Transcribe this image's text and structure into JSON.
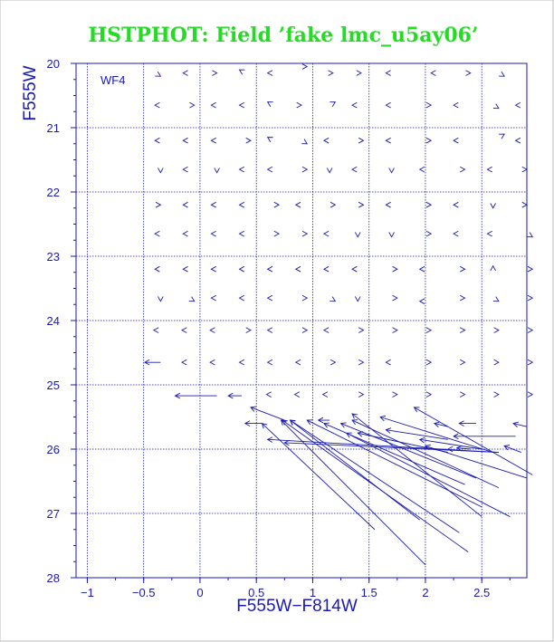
{
  "chart_data": {
    "type": "vector-field",
    "title": "HSTPHOT: Field ’fake lmc_u5ay06’",
    "panel_label": "WF4",
    "xlabel": "F555W−F814W",
    "ylabel": "F555W",
    "xlim": [
      -1.1,
      2.9
    ],
    "ylim": [
      28,
      20
    ],
    "y_inverted": true,
    "grid": true,
    "x_ticks": [
      -1,
      -0.5,
      0,
      0.5,
      1,
      1.5,
      2,
      2.5
    ],
    "x_tick_labels": [
      "−1",
      "−0.5",
      "0",
      "0.5",
      "1",
      "1.5",
      "2",
      "2.5"
    ],
    "y_ticks": [
      20,
      21,
      22,
      23,
      24,
      25,
      26,
      27,
      28
    ],
    "y_tick_labels": [
      "20",
      "21",
      "22",
      "23",
      "24",
      "25",
      "26",
      "27",
      "28"
    ],
    "line_color": "#1a1ab0",
    "title_color": "#22dd22",
    "arrows_note": "Each mark starts at the input (color, magnitude) and points to the measured value; head is the chevron.",
    "arrows": [
      {
        "x": -0.4,
        "y": 20.15,
        "dx": 0.05,
        "dy": 0.05
      },
      {
        "x": -0.1,
        "y": 20.15,
        "dx": -0.05,
        "dy": 0.0
      },
      {
        "x": 0.1,
        "y": 20.15,
        "dx": 0.05,
        "dy": 0.0
      },
      {
        "x": 0.4,
        "y": 20.15,
        "dx": -0.05,
        "dy": -0.05
      },
      {
        "x": 0.65,
        "y": 20.15,
        "dx": -0.05,
        "dy": 0.0
      },
      {
        "x": 0.9,
        "y": 20.05,
        "dx": 0.05,
        "dy": 0.0
      },
      {
        "x": 1.15,
        "y": 20.15,
        "dx": 0.03,
        "dy": 0.0
      },
      {
        "x": 1.4,
        "y": 20.15,
        "dx": 0.03,
        "dy": 0.0
      },
      {
        "x": 1.7,
        "y": 20.15,
        "dx": -0.05,
        "dy": 0.0
      },
      {
        "x": 2.1,
        "y": 20.15,
        "dx": -0.05,
        "dy": 0.0
      },
      {
        "x": 2.35,
        "y": 20.15,
        "dx": 0.05,
        "dy": 0.0
      },
      {
        "x": 2.65,
        "y": 20.15,
        "dx": 0.05,
        "dy": 0.05
      },
      {
        "x": -0.35,
        "y": 20.65,
        "dx": -0.05,
        "dy": 0.0
      },
      {
        "x": -0.1,
        "y": 20.65,
        "dx": 0.05,
        "dy": 0.0
      },
      {
        "x": 0.15,
        "y": 20.65,
        "dx": -0.05,
        "dy": 0.0
      },
      {
        "x": 0.4,
        "y": 20.65,
        "dx": -0.05,
        "dy": 0.0
      },
      {
        "x": 0.65,
        "y": 20.65,
        "dx": -0.05,
        "dy": -0.05
      },
      {
        "x": 0.85,
        "y": 20.65,
        "dx": 0.05,
        "dy": 0.0
      },
      {
        "x": 1.15,
        "y": 20.65,
        "dx": 0.05,
        "dy": -0.05
      },
      {
        "x": 1.4,
        "y": 20.65,
        "dx": -0.05,
        "dy": 0.0
      },
      {
        "x": 1.7,
        "y": 20.65,
        "dx": -0.05,
        "dy": 0.0
      },
      {
        "x": 2.0,
        "y": 20.65,
        "dx": 0.05,
        "dy": 0.0
      },
      {
        "x": 2.3,
        "y": 20.65,
        "dx": -0.05,
        "dy": 0.0
      },
      {
        "x": 2.6,
        "y": 20.65,
        "dx": 0.05,
        "dy": 0.05
      },
      {
        "x": 2.85,
        "y": 20.65,
        "dx": -0.05,
        "dy": 0.0
      },
      {
        "x": -0.35,
        "y": 21.2,
        "dx": -0.05,
        "dy": 0.0
      },
      {
        "x": -0.1,
        "y": 21.2,
        "dx": -0.05,
        "dy": 0.0
      },
      {
        "x": 0.15,
        "y": 21.2,
        "dx": -0.05,
        "dy": 0.0
      },
      {
        "x": 0.4,
        "y": 21.2,
        "dx": 0.05,
        "dy": 0.0
      },
      {
        "x": 0.65,
        "y": 21.2,
        "dx": -0.05,
        "dy": -0.05
      },
      {
        "x": 0.9,
        "y": 21.2,
        "dx": 0.05,
        "dy": 0.05
      },
      {
        "x": 1.15,
        "y": 21.2,
        "dx": -0.05,
        "dy": 0.0
      },
      {
        "x": 1.4,
        "y": 21.2,
        "dx": 0.05,
        "dy": 0.0
      },
      {
        "x": 1.7,
        "y": 21.2,
        "dx": -0.05,
        "dy": 0.0
      },
      {
        "x": 2.0,
        "y": 21.2,
        "dx": 0.05,
        "dy": 0.0
      },
      {
        "x": 2.3,
        "y": 21.2,
        "dx": -0.05,
        "dy": 0.0
      },
      {
        "x": 2.65,
        "y": 21.15,
        "dx": 0.05,
        "dy": -0.05
      },
      {
        "x": 2.85,
        "y": 21.2,
        "dx": -0.05,
        "dy": 0.0
      },
      {
        "x": -0.35,
        "y": 21.65,
        "dx": 0.0,
        "dy": 0.05
      },
      {
        "x": -0.1,
        "y": 21.65,
        "dx": -0.05,
        "dy": 0.0
      },
      {
        "x": 0.15,
        "y": 21.65,
        "dx": 0.0,
        "dy": 0.05
      },
      {
        "x": 0.4,
        "y": 21.65,
        "dx": -0.05,
        "dy": 0.0
      },
      {
        "x": 0.65,
        "y": 21.65,
        "dx": -0.05,
        "dy": 0.0
      },
      {
        "x": 0.9,
        "y": 21.65,
        "dx": 0.05,
        "dy": 0.0
      },
      {
        "x": 1.15,
        "y": 21.65,
        "dx": 0.0,
        "dy": 0.05
      },
      {
        "x": 1.4,
        "y": 21.65,
        "dx": -0.05,
        "dy": 0.0
      },
      {
        "x": 1.7,
        "y": 21.65,
        "dx": 0.0,
        "dy": 0.05
      },
      {
        "x": 2.0,
        "y": 21.65,
        "dx": -0.05,
        "dy": 0.0
      },
      {
        "x": 2.3,
        "y": 21.65,
        "dx": 0.05,
        "dy": 0.0
      },
      {
        "x": 2.6,
        "y": 21.65,
        "dx": -0.05,
        "dy": 0.0
      },
      {
        "x": 2.85,
        "y": 21.65,
        "dx": 0.05,
        "dy": 0.0
      },
      {
        "x": -0.4,
        "y": 22.2,
        "dx": 0.05,
        "dy": 0.0
      },
      {
        "x": -0.1,
        "y": 22.2,
        "dx": -0.05,
        "dy": 0.0
      },
      {
        "x": 0.15,
        "y": 22.2,
        "dx": -0.05,
        "dy": 0.0
      },
      {
        "x": 0.4,
        "y": 22.2,
        "dx": -0.05,
        "dy": 0.0
      },
      {
        "x": 0.65,
        "y": 22.2,
        "dx": 0.05,
        "dy": 0.0
      },
      {
        "x": 0.9,
        "y": 22.2,
        "dx": -0.05,
        "dy": 0.0
      },
      {
        "x": 1.15,
        "y": 22.2,
        "dx": 0.05,
        "dy": 0.0
      },
      {
        "x": 1.4,
        "y": 22.2,
        "dx": 0.05,
        "dy": 0.0
      },
      {
        "x": 1.7,
        "y": 22.2,
        "dx": -0.05,
        "dy": 0.0
      },
      {
        "x": 2.0,
        "y": 22.2,
        "dx": 0.05,
        "dy": 0.0
      },
      {
        "x": 2.3,
        "y": 22.2,
        "dx": -0.05,
        "dy": 0.0
      },
      {
        "x": 2.6,
        "y": 22.2,
        "dx": 0.0,
        "dy": 0.05
      },
      {
        "x": 2.85,
        "y": 22.2,
        "dx": 0.05,
        "dy": 0.0
      },
      {
        "x": -0.35,
        "y": 22.65,
        "dx": -0.05,
        "dy": 0.0
      },
      {
        "x": -0.1,
        "y": 22.65,
        "dx": -0.05,
        "dy": 0.0
      },
      {
        "x": 0.15,
        "y": 22.65,
        "dx": -0.05,
        "dy": 0.0
      },
      {
        "x": 0.4,
        "y": 22.65,
        "dx": -0.05,
        "dy": 0.0
      },
      {
        "x": 0.65,
        "y": 22.65,
        "dx": 0.05,
        "dy": 0.0
      },
      {
        "x": 0.9,
        "y": 22.65,
        "dx": 0.05,
        "dy": 0.0
      },
      {
        "x": 1.15,
        "y": 22.65,
        "dx": -0.05,
        "dy": 0.0
      },
      {
        "x": 1.4,
        "y": 22.65,
        "dx": 0.0,
        "dy": 0.05
      },
      {
        "x": 1.7,
        "y": 22.65,
        "dx": 0.0,
        "dy": 0.05
      },
      {
        "x": 2.0,
        "y": 22.65,
        "dx": 0.05,
        "dy": 0.0
      },
      {
        "x": 2.3,
        "y": 22.65,
        "dx": -0.05,
        "dy": 0.0
      },
      {
        "x": 2.6,
        "y": 22.65,
        "dx": -0.05,
        "dy": 0.0
      },
      {
        "x": 2.9,
        "y": 22.65,
        "dx": 0.05,
        "dy": 0.05
      },
      {
        "x": -0.35,
        "y": 23.2,
        "dx": -0.05,
        "dy": 0.0
      },
      {
        "x": -0.1,
        "y": 23.2,
        "dx": -0.05,
        "dy": 0.0
      },
      {
        "x": 0.15,
        "y": 23.2,
        "dx": -0.05,
        "dy": 0.0
      },
      {
        "x": 0.4,
        "y": 23.2,
        "dx": -0.05,
        "dy": 0.0
      },
      {
        "x": 0.65,
        "y": 23.2,
        "dx": -0.05,
        "dy": 0.0
      },
      {
        "x": 0.9,
        "y": 23.2,
        "dx": -0.05,
        "dy": 0.0
      },
      {
        "x": 1.15,
        "y": 23.2,
        "dx": -0.05,
        "dy": 0.0
      },
      {
        "x": 1.4,
        "y": 23.2,
        "dx": -0.05,
        "dy": 0.0
      },
      {
        "x": 1.7,
        "y": 23.2,
        "dx": 0.05,
        "dy": 0.0
      },
      {
        "x": 2.0,
        "y": 23.2,
        "dx": -0.05,
        "dy": 0.0
      },
      {
        "x": 2.3,
        "y": 23.2,
        "dx": 0.05,
        "dy": 0.0
      },
      {
        "x": 2.6,
        "y": 23.2,
        "dx": 0.0,
        "dy": -0.05
      },
      {
        "x": 2.9,
        "y": 23.2,
        "dx": 0.05,
        "dy": 0.0
      },
      {
        "x": -0.35,
        "y": 23.65,
        "dx": 0.0,
        "dy": 0.05
      },
      {
        "x": -0.1,
        "y": 23.65,
        "dx": 0.05,
        "dy": 0.05
      },
      {
        "x": 0.15,
        "y": 23.65,
        "dx": -0.05,
        "dy": 0.0
      },
      {
        "x": 0.4,
        "y": 23.65,
        "dx": -0.05,
        "dy": 0.0
      },
      {
        "x": 0.65,
        "y": 23.65,
        "dx": -0.05,
        "dy": 0.0
      },
      {
        "x": 0.9,
        "y": 23.65,
        "dx": 0.05,
        "dy": 0.0
      },
      {
        "x": 1.15,
        "y": 23.65,
        "dx": 0.05,
        "dy": 0.05
      },
      {
        "x": 1.4,
        "y": 23.65,
        "dx": 0.0,
        "dy": 0.05
      },
      {
        "x": 1.7,
        "y": 23.65,
        "dx": 0.05,
        "dy": 0.0
      },
      {
        "x": 2.0,
        "y": 23.7,
        "dx": -0.05,
        "dy": 0.0
      },
      {
        "x": 2.3,
        "y": 23.65,
        "dx": 0.05,
        "dy": 0.0
      },
      {
        "x": 2.6,
        "y": 23.65,
        "dx": 0.05,
        "dy": 0.05
      },
      {
        "x": 2.9,
        "y": 23.65,
        "dx": 0.05,
        "dy": 0.0
      },
      {
        "x": -0.35,
        "y": 24.15,
        "dx": -0.06,
        "dy": 0.0
      },
      {
        "x": -0.1,
        "y": 24.15,
        "dx": -0.06,
        "dy": 0.0
      },
      {
        "x": 0.15,
        "y": 24.15,
        "dx": -0.06,
        "dy": 0.0
      },
      {
        "x": 0.4,
        "y": 24.15,
        "dx": 0.05,
        "dy": 0.0
      },
      {
        "x": 0.65,
        "y": 24.15,
        "dx": -0.05,
        "dy": 0.0
      },
      {
        "x": 0.9,
        "y": 24.15,
        "dx": 0.05,
        "dy": 0.0
      },
      {
        "x": 1.15,
        "y": 24.15,
        "dx": -0.05,
        "dy": 0.0
      },
      {
        "x": 1.4,
        "y": 24.15,
        "dx": 0.05,
        "dy": 0.0
      },
      {
        "x": 1.7,
        "y": 24.15,
        "dx": 0.05,
        "dy": 0.0
      },
      {
        "x": 2.0,
        "y": 24.15,
        "dx": 0.05,
        "dy": 0.0
      },
      {
        "x": 2.3,
        "y": 24.15,
        "dx": 0.05,
        "dy": 0.0
      },
      {
        "x": 2.6,
        "y": 24.15,
        "dx": 0.05,
        "dy": 0.0
      },
      {
        "x": 2.9,
        "y": 24.15,
        "dx": 0.05,
        "dy": 0.0
      },
      {
        "x": -0.35,
        "y": 24.65,
        "dx": -0.14,
        "dy": 0.0
      },
      {
        "x": -0.1,
        "y": 24.65,
        "dx": -0.06,
        "dy": 0.0
      },
      {
        "x": 0.15,
        "y": 24.65,
        "dx": -0.06,
        "dy": 0.0
      },
      {
        "x": 0.4,
        "y": 24.65,
        "dx": -0.05,
        "dy": 0.0
      },
      {
        "x": 0.65,
        "y": 24.65,
        "dx": -0.05,
        "dy": 0.0
      },
      {
        "x": 0.9,
        "y": 24.65,
        "dx": -0.05,
        "dy": 0.0
      },
      {
        "x": 1.15,
        "y": 24.65,
        "dx": 0.05,
        "dy": 0.0
      },
      {
        "x": 1.4,
        "y": 24.65,
        "dx": 0.05,
        "dy": 0.0
      },
      {
        "x": 1.7,
        "y": 24.65,
        "dx": -0.05,
        "dy": 0.0
      },
      {
        "x": 2.0,
        "y": 24.65,
        "dx": 0.05,
        "dy": 0.0
      },
      {
        "x": 2.3,
        "y": 24.65,
        "dx": 0.05,
        "dy": 0.0
      },
      {
        "x": 2.6,
        "y": 24.65,
        "dx": 0.05,
        "dy": 0.0
      },
      {
        "x": 2.9,
        "y": 24.65,
        "dx": 0.05,
        "dy": 0.0
      },
      {
        "x": 0.15,
        "y": 25.17,
        "dx": -0.37,
        "dy": 0.0
      },
      {
        "x": 0.37,
        "y": 25.17,
        "dx": -0.12,
        "dy": 0.0
      },
      {
        "x": 0.65,
        "y": 25.15,
        "dx": -0.06,
        "dy": 0.0
      },
      {
        "x": 0.9,
        "y": 25.15,
        "dx": -0.06,
        "dy": 0.0
      },
      {
        "x": 1.15,
        "y": 25.15,
        "dx": -0.06,
        "dy": 0.0
      },
      {
        "x": 1.4,
        "y": 25.15,
        "dx": 0.05,
        "dy": 0.0
      },
      {
        "x": 1.7,
        "y": 25.15,
        "dx": 0.05,
        "dy": 0.0
      },
      {
        "x": 2.0,
        "y": 25.15,
        "dx": 0.05,
        "dy": 0.0
      },
      {
        "x": 2.3,
        "y": 25.15,
        "dx": 0.05,
        "dy": 0.0
      },
      {
        "x": 2.6,
        "y": 25.15,
        "dx": 0.05,
        "dy": 0.0
      },
      {
        "x": 2.9,
        "y": 25.15,
        "dx": 0.05,
        "dy": 0.0
      },
      {
        "x": 0.75,
        "y": 25.55,
        "dx": -0.3,
        "dy": -0.2
      },
      {
        "x": 1.15,
        "y": 25.55,
        "dx": -0.1,
        "dy": 0.0
      },
      {
        "x": 0.55,
        "y": 25.6,
        "dx": -0.15,
        "dy": 0.0
      },
      {
        "x": 2.9,
        "y": 25.65,
        "dx": -0.12,
        "dy": -0.05
      },
      {
        "x": 2.45,
        "y": 25.6,
        "dx": -0.15,
        "dy": 0.0
      },
      {
        "x": 2.2,
        "y": 25.65,
        "dx": -0.12,
        "dy": -0.05
      },
      {
        "x": 1.55,
        "y": 27.25,
        "dx": -1.0,
        "dy": -1.65
      },
      {
        "x": 2.0,
        "y": 27.8,
        "dx": -1.28,
        "dy": -2.25
      },
      {
        "x": 2.38,
        "y": 27.6,
        "dx": -1.65,
        "dy": -2.05
      },
      {
        "x": 2.3,
        "y": 27.3,
        "dx": -1.5,
        "dy": -1.75
      },
      {
        "x": 1.95,
        "y": 27.1,
        "dx": -1.15,
        "dy": -1.55
      },
      {
        "x": 2.5,
        "y": 26.9,
        "dx": -1.55,
        "dy": -1.35
      },
      {
        "x": 2.5,
        "y": 27.05,
        "dx": -1.15,
        "dy": -1.6
      },
      {
        "x": 2.75,
        "y": 27.05,
        "dx": -1.45,
        "dy": -1.3
      },
      {
        "x": 2.65,
        "y": 26.6,
        "dx": -1.3,
        "dy": -1.05
      },
      {
        "x": 2.45,
        "y": 26.45,
        "dx": -1.2,
        "dy": -0.85
      },
      {
        "x": 2.35,
        "y": 26.55,
        "dx": -1.25,
        "dy": -0.95
      },
      {
        "x": 2.2,
        "y": 26.05,
        "dx": -0.8,
        "dy": -0.3
      },
      {
        "x": 2.6,
        "y": 26.05,
        "dx": -1.0,
        "dy": -0.55
      },
      {
        "x": 2.5,
        "y": 26.0,
        "dx": -0.55,
        "dy": -0.15
      },
      {
        "x": 2.65,
        "y": 26.05,
        "dx": -1.9,
        "dy": -0.15
      },
      {
        "x": 2.65,
        "y": 26.05,
        "dx": -2.05,
        "dy": -0.2
      },
      {
        "x": 2.2,
        "y": 25.85,
        "dx": -0.55,
        "dy": -0.15
      },
      {
        "x": 2.9,
        "y": 26.45,
        "dx": -0.9,
        "dy": -0.5
      },
      {
        "x": 2.95,
        "y": 26.4,
        "dx": -1.05,
        "dy": -1.05
      },
      {
        "x": 2.8,
        "y": 25.8,
        "dx": -0.55,
        "dy": 0.0
      },
      {
        "x": 2.85,
        "y": 26.05,
        "dx": -0.15,
        "dy": -0.1
      },
      {
        "x": 2.4,
        "y": 26.0,
        "dx": -0.12,
        "dy": -0.02
      },
      {
        "x": 2.25,
        "y": 26.0,
        "dx": -0.05,
        "dy": 0.0
      }
    ]
  }
}
